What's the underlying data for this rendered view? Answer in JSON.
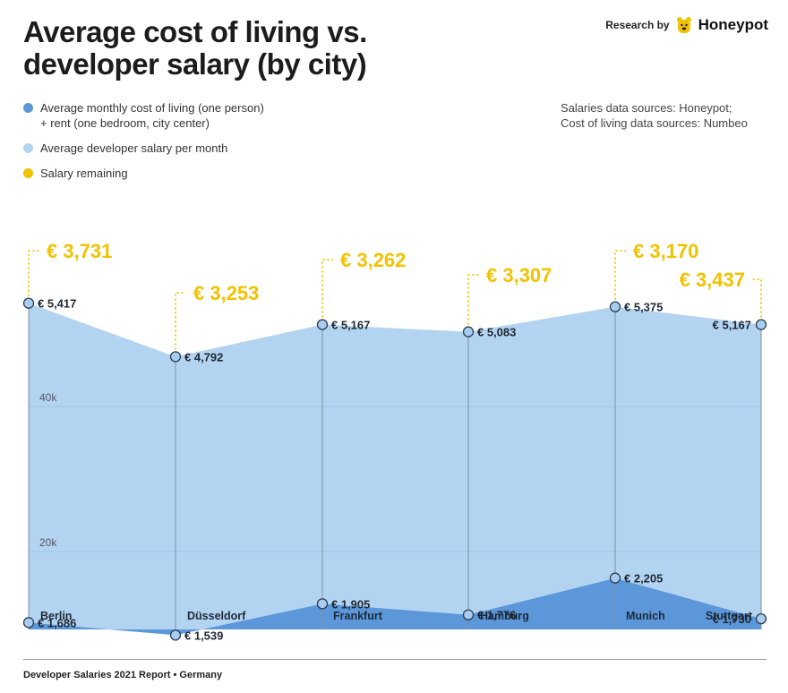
{
  "header": {
    "title": "Average cost of living vs. developer salary (by city)",
    "research_by": "Research by",
    "brand_name": "Honeypot"
  },
  "legend": {
    "items": [
      {
        "label": "Average monthly cost of living (one person)\n+ rent (one bedroom, city center)",
        "color": "#5b97d9"
      },
      {
        "label": "Average developer salary per month",
        "color": "#b3d4f1"
      },
      {
        "label": "Salary remaining",
        "color": "#f2c200"
      }
    ]
  },
  "sources": "Salaries data sources: Honeypot;\nCost of living data sources: Numbeo",
  "chart_data": {
    "type": "area",
    "categories": [
      "Berlin",
      "Düsseldorf",
      "Frankfurt",
      "Hamburg",
      "Munich",
      "Stuttgart"
    ],
    "series": [
      {
        "name": "Average developer salary per month",
        "values": [
          5417,
          4792,
          5167,
          5083,
          5375,
          5167
        ],
        "labels": [
          "€ 5,417",
          "€ 4,792",
          "€ 5,167",
          "€ 5,083",
          "€ 5,375",
          "€ 5,167"
        ]
      },
      {
        "name": "Average monthly cost of living (one person) + rent (one bedroom, city center)",
        "values": [
          1686,
          1539,
          1905,
          1776,
          2205,
          1730
        ],
        "labels": [
          "€ 1,686",
          "€ 1,539",
          "€ 1,905",
          "€ 1,776",
          "€ 2,205",
          "€ 1,730"
        ]
      },
      {
        "name": "Salary remaining",
        "values": [
          3731,
          3253,
          3262,
          3307,
          3170,
          3437
        ],
        "labels": [
          "€ 3,731",
          "€ 3,253",
          "€ 3,262",
          "€ 3,307",
          "€ 3,170",
          "€ 3,437"
        ]
      }
    ],
    "y_tick_labels": [
      "20k",
      "40k"
    ],
    "colors": {
      "salary": "#b3d4f1",
      "cost": "#5b97d9",
      "remaining": "#f2c200",
      "marker_fill": "#a9cdef",
      "marker_stroke": "#2c3e55"
    },
    "grid": true
  },
  "footer": "Developer Salaries 2021 Report  •  Germany"
}
